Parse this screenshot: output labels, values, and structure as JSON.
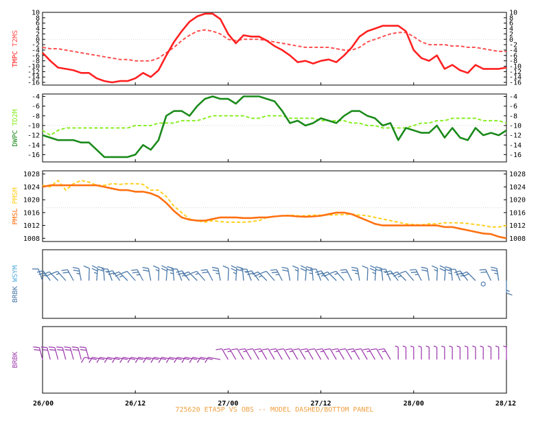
{
  "chart_data": [
    {
      "type": "line",
      "panel": "temperature",
      "y_label_obs": "TMPC",
      "y_label_model": "T2MS",
      "ylim": [
        -17,
        10
      ],
      "y_ticks": [
        10,
        8,
        6,
        4,
        2,
        0,
        -2,
        -4,
        -6,
        -8,
        -10,
        -12,
        -14,
        -16
      ],
      "grid_values": [
        0
      ],
      "x_hours": [
        0,
        1,
        2,
        3,
        4,
        5,
        6,
        7,
        8,
        9,
        10,
        11,
        12,
        13,
        14,
        15,
        16,
        17,
        18,
        19,
        20,
        21,
        22,
        23,
        24,
        25,
        26,
        27,
        28,
        29,
        30,
        31,
        32,
        33,
        34,
        35,
        36,
        37,
        38,
        39,
        40,
        41,
        42,
        43,
        44,
        45,
        46,
        47,
        48,
        49,
        50,
        51,
        52,
        53,
        54,
        55,
        56,
        57,
        58,
        59,
        60
      ],
      "series": [
        {
          "name": "TMPC",
          "color": "#ff2020",
          "dash": false,
          "values": [
            -5,
            -8,
            -10.5,
            -11,
            -11.5,
            -12.5,
            -12.5,
            -14.5,
            -15.5,
            -16,
            -15.5,
            -15.5,
            -14.5,
            -12.5,
            -14,
            -11.5,
            -6,
            -1,
            3,
            6.5,
            8.5,
            9.5,
            9.5,
            7.5,
            2,
            -1.5,
            1.5,
            1,
            1,
            -0.5,
            -2.5,
            -4,
            -6,
            -8.5,
            -8,
            -9,
            -8,
            -7.5,
            -8.5,
            -6,
            -3,
            1,
            3,
            4,
            5,
            5,
            5,
            3,
            -4,
            -7,
            -8,
            -6,
            -11,
            -9.5,
            -11.5,
            -12.5,
            -9.5,
            -11,
            -11,
            -11,
            -10.5
          ]
        },
        {
          "name": "T2MS",
          "color": "#ff5050",
          "dash": true,
          "values": [
            -3,
            -3.5,
            -3.5,
            -4,
            -4.5,
            -5,
            -5.5,
            -6,
            -6.5,
            -7,
            -7.5,
            -7.5,
            -8,
            -8,
            -8,
            -7,
            -5,
            -3,
            -0.5,
            1.5,
            3,
            3.5,
            3,
            2,
            0,
            -0.5,
            0,
            0,
            0,
            -0.5,
            -1,
            -1.5,
            -2,
            -2.5,
            -3,
            -3,
            -3,
            -3,
            -3.5,
            -4,
            -4,
            -3,
            -1,
            0,
            1,
            2,
            2.5,
            2.5,
            1,
            -1,
            -2,
            -2,
            -2,
            -2.5,
            -2.5,
            -3,
            -3,
            -3.5,
            -4,
            -4.5,
            -4.5
          ]
        }
      ]
    },
    {
      "type": "line",
      "panel": "dewpoint",
      "y_label_obs": "DWPC",
      "y_label_model": "TD2M",
      "ylim": [
        -17.5,
        -3.5
      ],
      "y_ticks": [
        -4,
        -6,
        -8,
        -10,
        -12,
        -14,
        -16
      ],
      "grid_values": [
        -10
      ],
      "x_hours": [
        0,
        1,
        2,
        3,
        4,
        5,
        6,
        7,
        8,
        9,
        10,
        11,
        12,
        13,
        14,
        15,
        16,
        17,
        18,
        19,
        20,
        21,
        22,
        23,
        24,
        25,
        26,
        27,
        28,
        29,
        30,
        31,
        32,
        33,
        34,
        35,
        36,
        37,
        38,
        39,
        40,
        41,
        42,
        43,
        44,
        45,
        46,
        47,
        48,
        49,
        50,
        51,
        52,
        53,
        54,
        55,
        56,
        57,
        58,
        59,
        60
      ],
      "series": [
        {
          "name": "DWPC",
          "color": "#1a8a1a",
          "dash": false,
          "values": [
            -12,
            -12.5,
            -13,
            -13,
            -13,
            -13.5,
            -13.5,
            -15,
            -16.5,
            -16.5,
            -16.5,
            -16.5,
            -16,
            -14,
            -15,
            -13,
            -8,
            -7,
            -7,
            -8,
            -6,
            -4.5,
            -4,
            -4.5,
            -4.5,
            -5.5,
            -4,
            -4,
            -4,
            -4.5,
            -5,
            -7,
            -9.5,
            -9,
            -10,
            -9.5,
            -8.5,
            -9,
            -9.5,
            -8,
            -7,
            -7,
            -8,
            -8.5,
            -10,
            -9.5,
            -13,
            -10.5,
            -11,
            -11.5,
            -11.5,
            -10,
            -12.5,
            -10.5,
            -12.5,
            -13,
            -10.5,
            -12,
            -11.5,
            -12,
            -11
          ]
        },
        {
          "name": "TD2M",
          "color": "#88ee22",
          "dash": true,
          "values": [
            -11,
            -12,
            -11,
            -10.5,
            -10.5,
            -10.5,
            -10.5,
            -10.5,
            -10.5,
            -10.5,
            -10.5,
            -10.5,
            -10,
            -10,
            -10,
            -9.5,
            -9.5,
            -9.5,
            -9,
            -9,
            -9,
            -8.5,
            -8,
            -8,
            -8,
            -8,
            -8,
            -8.5,
            -8.5,
            -8,
            -8,
            -8,
            -8.5,
            -8.5,
            -8.5,
            -8.5,
            -9,
            -9,
            -9,
            -9,
            -9.5,
            -9.5,
            -10,
            -10,
            -10.5,
            -10.5,
            -10.5,
            -10.5,
            -10,
            -9.5,
            -9.5,
            -9,
            -9,
            -8.5,
            -8.5,
            -8.5,
            -8.5,
            -9,
            -9,
            -9,
            -9.5
          ]
        }
      ]
    },
    {
      "type": "line",
      "panel": "pressure",
      "y_label_obs": "PMSL",
      "y_label_model": "PMSM",
      "ylim": [
        1007,
        1029
      ],
      "y_ticks": [
        1028,
        1024,
        1020,
        1016,
        1012,
        1008
      ],
      "grid_values": [
        1017.5
      ],
      "x_hours": [
        0,
        1,
        2,
        3,
        4,
        5,
        6,
        7,
        8,
        9,
        10,
        11,
        12,
        13,
        14,
        15,
        16,
        17,
        18,
        19,
        20,
        21,
        22,
        23,
        24,
        25,
        26,
        27,
        28,
        29,
        30,
        31,
        32,
        33,
        34,
        35,
        36,
        37,
        38,
        39,
        40,
        41,
        42,
        43,
        44,
        45,
        46,
        47,
        48,
        49,
        50,
        51,
        52,
        53,
        54,
        55,
        56,
        57,
        58,
        59,
        60
      ],
      "series": [
        {
          "name": "PMSL",
          "color": "#ff7010",
          "dash": false,
          "values": [
            1024,
            1024.5,
            1024.5,
            1024.5,
            1024.5,
            1024.5,
            1024.5,
            1024.5,
            1024,
            1023.5,
            1023,
            1023,
            1022.5,
            1022.5,
            1022,
            1021,
            1019,
            1016.5,
            1014.5,
            1013.8,
            1013.5,
            1013.5,
            1014,
            1014.5,
            1014.5,
            1014.5,
            1014.3,
            1014.3,
            1014.5,
            1014.5,
            1014.8,
            1015,
            1015,
            1014.8,
            1014.7,
            1014.8,
            1015,
            1015.5,
            1016,
            1016,
            1015.5,
            1014.5,
            1013.5,
            1012.5,
            1012,
            1012,
            1012,
            1012,
            1012,
            1012,
            1012,
            1012,
            1011.5,
            1011.5,
            1011,
            1010.5,
            1010,
            1009.5,
            1009.3,
            1008.5,
            1008
          ]
        },
        {
          "name": "PMSM",
          "color": "#ffd020",
          "dash": true,
          "values": [
            1024.5,
            1024,
            1026,
            1023,
            1025,
            1026,
            1025.5,
            1024.5,
            1024.5,
            1025,
            1024.8,
            1025,
            1025,
            1024.8,
            1023,
            1023,
            1021,
            1018,
            1016,
            1014,
            1013.5,
            1013,
            1013.5,
            1013.2,
            1013,
            1013,
            1013,
            1013.2,
            1013.5,
            1014.5,
            1014.8,
            1015,
            1015.2,
            1015,
            1015,
            1015.2,
            1015.2,
            1015.2,
            1015.3,
            1015.4,
            1015.5,
            1015.2,
            1015,
            1014.5,
            1014,
            1013.5,
            1013,
            1012.5,
            1012.3,
            1012.2,
            1012.5,
            1012.5,
            1012.8,
            1012.8,
            1012.8,
            1012.6,
            1012.3,
            1012,
            1011.5,
            1011.5,
            1012
          ]
        }
      ]
    },
    {
      "type": "wind_barbs",
      "panel": "observed-wind",
      "y_label_obs": "BRBK",
      "y_label_model": "WSYM",
      "color": "#4a78a8"
    },
    {
      "type": "wind_barbs",
      "panel": "model-wind",
      "y_label_obs": "BRBK",
      "y_label_model": "",
      "color": "#a040b0"
    }
  ],
  "x_axis": {
    "tick_labels": [
      "26/00",
      "26/12",
      "27/00",
      "27/12",
      "28/00",
      "28/12"
    ],
    "tick_hours": [
      0,
      12,
      24,
      36,
      48,
      60
    ],
    "range_hours": [
      0,
      60
    ]
  },
  "footer": "725620  ETA5P VS OBS -- MODEL DASHED/BOTTOM PANEL",
  "colors": {
    "grid": "#bbbbbb",
    "axis": "#000000",
    "footer": "#f0a040"
  }
}
